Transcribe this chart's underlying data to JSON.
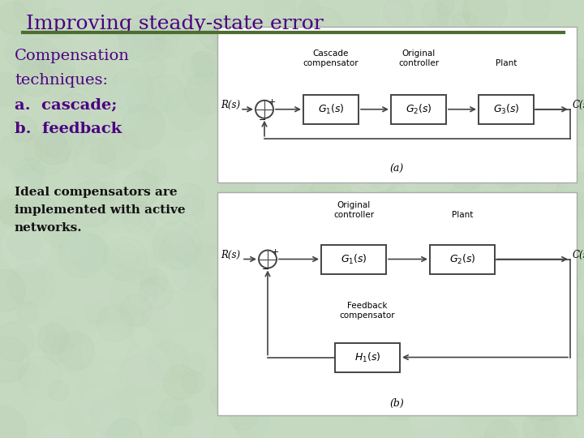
{
  "title": "Improving steady-state error",
  "title_color": "#4b0082",
  "title_fontsize": 18,
  "underline_color": "#4b6e2e",
  "bg_color": "#c5d8c0",
  "texture_colors": [
    "#a8c8a0",
    "#d0e8d0",
    "#b0c8b0",
    "#c8e0c8",
    "#e0ece0",
    "#b8d0b8"
  ],
  "left_text_lines": [
    "Compensation",
    "techniques:",
    "a.  cascade;",
    "b.  feedback"
  ],
  "left_text_bold": [
    false,
    false,
    true,
    true
  ],
  "bottom_text_lines": [
    "Ideal compensators are",
    "implemented with active",
    "networks."
  ],
  "diag_a": {
    "label": "(a)",
    "top_labels": [
      "Cascade\ncompensator",
      "Original\ncontroller",
      "Plant"
    ],
    "box_labels": [
      "$G_1(s)$",
      "$G_2(s)$",
      "$G_3(s)$"
    ],
    "input": "R(s)",
    "output": "C(s)"
  },
  "diag_b": {
    "label": "(b)",
    "top_labels": [
      "Original\ncontroller",
      "Plant"
    ],
    "box_labels": [
      "$G_1(s)$",
      "$G_2(s)$"
    ],
    "fb_label": "Feedback\ncompensator",
    "fb_box": "$H_1(s)$",
    "input": "R(s)",
    "output": "C(s)"
  }
}
